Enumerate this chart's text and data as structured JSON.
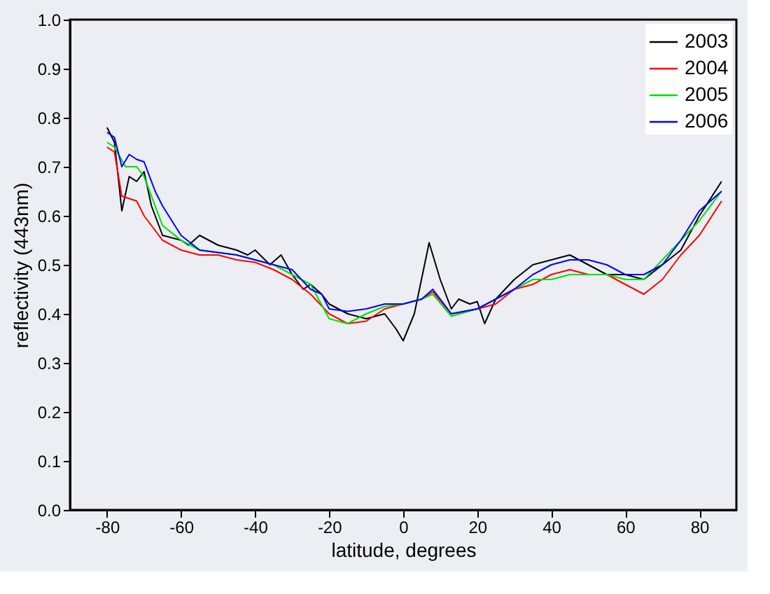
{
  "chart_data": {
    "type": "line",
    "xlabel": "latitude, degrees",
    "ylabel": "reflectivity (443nm)",
    "xlim": [
      -90,
      90
    ],
    "xticks": [
      -80,
      -60,
      -40,
      -20,
      0,
      20,
      40,
      60,
      80
    ],
    "ylim": [
      0,
      1
    ],
    "yticks": [
      {
        "value": 0,
        "label": "0.0"
      },
      0.1,
      0.2,
      0.3,
      0.4,
      0.5,
      0.6,
      0.7,
      0.8,
      0.9,
      {
        "value": 1,
        "label": "1.0"
      }
    ],
    "grid": false,
    "legend": "top right",
    "marker": "none",
    "line_style": "solid",
    "series": [
      {
        "name": "2003",
        "color": "#000000",
        "x": [
          -80,
          -78,
          -76,
          -74,
          -72,
          -70,
          -68,
          -65,
          -60,
          -58,
          -55,
          -50,
          -45,
          -42,
          -40,
          -36,
          -33,
          -30,
          -27,
          -25,
          -22,
          -20,
          -15,
          -10,
          -5,
          -2,
          0,
          3,
          7,
          10,
          13,
          15,
          18,
          20,
          22,
          25,
          30,
          35,
          40,
          45,
          50,
          55,
          60,
          65,
          70,
          75,
          80,
          86
        ],
        "values": [
          0.78,
          0.75,
          0.61,
          0.68,
          0.67,
          0.69,
          0.62,
          0.56,
          0.55,
          0.54,
          0.56,
          0.54,
          0.53,
          0.52,
          0.53,
          0.5,
          0.52,
          0.48,
          0.45,
          0.46,
          0.44,
          0.42,
          0.4,
          0.39,
          0.4,
          0.37,
          0.345,
          0.4,
          0.545,
          0.47,
          0.41,
          0.43,
          0.42,
          0.425,
          0.38,
          0.43,
          0.47,
          0.5,
          0.51,
          0.52,
          0.5,
          0.48,
          0.48,
          0.47,
          0.5,
          0.53,
          0.6,
          0.67
        ]
      },
      {
        "name": "2004",
        "color": "#ff0000",
        "x": [
          -80,
          -78,
          -76,
          -72,
          -70,
          -65,
          -60,
          -55,
          -50,
          -45,
          -40,
          -35,
          -30,
          -25,
          -20,
          -15,
          -10,
          -5,
          0,
          5,
          8,
          13,
          20,
          25,
          30,
          35,
          40,
          45,
          50,
          55,
          60,
          65,
          70,
          75,
          80,
          86
        ],
        "values": [
          0.74,
          0.73,
          0.64,
          0.63,
          0.6,
          0.55,
          0.53,
          0.52,
          0.52,
          0.51,
          0.505,
          0.49,
          0.47,
          0.44,
          0.4,
          0.38,
          0.385,
          0.41,
          0.42,
          0.43,
          0.445,
          0.4,
          0.41,
          0.42,
          0.45,
          0.46,
          0.48,
          0.49,
          0.48,
          0.48,
          0.46,
          0.44,
          0.47,
          0.52,
          0.56,
          0.63
        ]
      },
      {
        "name": "2005",
        "color": "#00e000",
        "x": [
          -80,
          -78,
          -75,
          -72,
          -70,
          -65,
          -60,
          -55,
          -50,
          -45,
          -40,
          -35,
          -30,
          -25,
          -20,
          -15,
          -10,
          -5,
          0,
          5,
          8,
          13,
          20,
          25,
          30,
          35,
          40,
          45,
          50,
          55,
          60,
          65,
          70,
          75,
          80,
          86
        ],
        "values": [
          0.75,
          0.74,
          0.7,
          0.7,
          0.68,
          0.58,
          0.55,
          0.53,
          0.525,
          0.52,
          0.51,
          0.5,
          0.48,
          0.46,
          0.39,
          0.38,
          0.4,
          0.415,
          0.42,
          0.43,
          0.44,
          0.395,
          0.41,
          0.43,
          0.45,
          0.47,
          0.47,
          0.48,
          0.48,
          0.48,
          0.47,
          0.47,
          0.51,
          0.55,
          0.59,
          0.65
        ]
      },
      {
        "name": "2006",
        "color": "#0000ff",
        "x": [
          -80,
          -78,
          -76,
          -74,
          -72,
          -70,
          -67,
          -65,
          -60,
          -55,
          -50,
          -45,
          -40,
          -35,
          -30,
          -25,
          -22,
          -20,
          -15,
          -10,
          -5,
          0,
          5,
          8,
          13,
          20,
          25,
          30,
          35,
          40,
          45,
          50,
          55,
          60,
          65,
          70,
          75,
          80,
          86
        ],
        "values": [
          0.77,
          0.76,
          0.7,
          0.725,
          0.715,
          0.71,
          0.65,
          0.62,
          0.56,
          0.53,
          0.525,
          0.52,
          0.51,
          0.5,
          0.49,
          0.45,
          0.44,
          0.41,
          0.405,
          0.41,
          0.42,
          0.42,
          0.43,
          0.45,
          0.4,
          0.41,
          0.43,
          0.45,
          0.48,
          0.5,
          0.51,
          0.51,
          0.5,
          0.48,
          0.48,
          0.5,
          0.55,
          0.61,
          0.65
        ]
      }
    ]
  }
}
